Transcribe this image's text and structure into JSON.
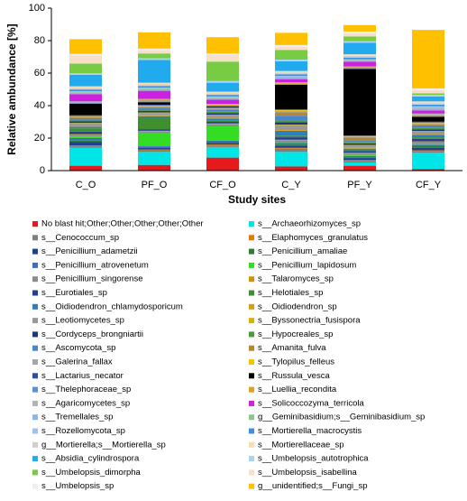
{
  "chart_data": {
    "type": "stacked_bar",
    "ylabel": "Relative ambundance [%]",
    "xlabel": "Study sites",
    "categories": [
      "C_O",
      "PF_O",
      "CF_O",
      "C_Y",
      "PF_Y",
      "CF_Y"
    ],
    "ylim": [
      0,
      100
    ],
    "yticks": [
      0,
      20,
      40,
      60,
      80,
      100
    ],
    "series": [
      {
        "name": "No blast hit;Other;Other;Other;Other;Other",
        "color": "#e41a1c",
        "values": [
          3,
          3.5,
          8,
          2.5,
          3,
          1
        ]
      },
      {
        "name": "s__Archaeorhizomyces_sp",
        "color": "#00e5e5",
        "values": [
          11,
          8,
          6.5,
          9,
          2,
          10
        ]
      },
      {
        "name": "s__Cenococcum_sp",
        "color": "#7f7f7f",
        "values": [
          1,
          1,
          1,
          2,
          1,
          1
        ]
      },
      {
        "name": "s__Elaphomyces_granulatus",
        "color": "#e07b00",
        "values": [
          0.5,
          0.5,
          0.5,
          0.5,
          0.5,
          0.5
        ]
      },
      {
        "name": "s__Penicillium_adametzii",
        "color": "#1f3f8f",
        "values": [
          2,
          1,
          1,
          1,
          1,
          1.5
        ]
      },
      {
        "name": "s__Penicillium_amaliae",
        "color": "#2e7d32",
        "values": [
          1,
          0.5,
          0.5,
          1,
          0.5,
          1
        ]
      },
      {
        "name": "s__Penicillium_atrovenetum",
        "color": "#3a6fc4",
        "values": [
          1.5,
          0.5,
          1,
          1,
          1,
          1
        ]
      },
      {
        "name": "s__Penicillium_lapidosum",
        "color": "#33dd22",
        "values": [
          1,
          8,
          9,
          0.5,
          0.5,
          0.5
        ]
      },
      {
        "name": "s__Penicillium_singorense",
        "color": "#8c8c8c",
        "values": [
          1,
          1,
          1,
          1,
          1,
          1
        ]
      },
      {
        "name": "s__Talaromyces_sp",
        "color": "#c89a00",
        "values": [
          0.5,
          0.5,
          0.5,
          0.5,
          0.5,
          0.5
        ]
      },
      {
        "name": "s__Eurotiales_sp",
        "color": "#24408e",
        "values": [
          1.5,
          1,
          1,
          1.5,
          1,
          1.5
        ]
      },
      {
        "name": "s__Helotiales_sp",
        "color": "#3f8f2f",
        "values": [
          2,
          7,
          1,
          1,
          0.5,
          1
        ]
      },
      {
        "name": "s__Oidiodendron_chlamydosporicum",
        "color": "#2f7fc0",
        "values": [
          1,
          1,
          1,
          3,
          1,
          1.5
        ]
      },
      {
        "name": "s__Oidiodendron_sp",
        "color": "#d4a017",
        "values": [
          0.5,
          0.5,
          0.5,
          0.5,
          0.5,
          0.5
        ]
      },
      {
        "name": "s__Leotiomycetes_sp",
        "color": "#999999",
        "values": [
          1.5,
          1.5,
          1.5,
          3,
          1.5,
          1.5
        ]
      },
      {
        "name": "s__Byssonectria_fusispora",
        "color": "#d9b300",
        "values": [
          0.3,
          0.3,
          0.3,
          0.3,
          0.3,
          0.3
        ]
      },
      {
        "name": "s__Cordyceps_brongniartii",
        "color": "#1c3a7a",
        "values": [
          1,
          1,
          1,
          1.5,
          1,
          1
        ]
      },
      {
        "name": "s__Hypocreales_sp",
        "color": "#4c9a3a",
        "values": [
          1,
          1,
          1,
          1,
          0.5,
          1
        ]
      },
      {
        "name": "s__Ascomycota_sp",
        "color": "#4a86d0",
        "values": [
          1,
          1,
          1,
          3,
          1,
          1.5
        ]
      },
      {
        "name": "s__Amanita_fulva",
        "color": "#b8862b",
        "values": [
          0.5,
          0.5,
          0.5,
          2,
          2,
          0.5
        ]
      },
      {
        "name": "s__Galerina_fallax",
        "color": "#a6a6a6",
        "values": [
          0.5,
          0.5,
          0.5,
          1,
          0.5,
          1
        ]
      },
      {
        "name": "s__Tylopilus_felleus",
        "color": "#f2c500",
        "values": [
          0.3,
          0.3,
          0.3,
          0.5,
          0.5,
          0.3
        ]
      },
      {
        "name": "s__Lactarius_necator",
        "color": "#2b4fa8",
        "values": [
          0.5,
          0.5,
          0.5,
          0.5,
          0.3,
          0.5
        ]
      },
      {
        "name": "s__Russula_vesca",
        "color": "#000000",
        "values": [
          7,
          1.5,
          0.5,
          15,
          41,
          3
        ]
      },
      {
        "name": "s__Thelephoraceae_sp",
        "color": "#5b8fd6",
        "values": [
          0.5,
          0.5,
          0.5,
          0.5,
          0.5,
          0.5
        ]
      },
      {
        "name": "s__Luellia_recondita",
        "color": "#e0a020",
        "values": [
          0.5,
          1,
          0.5,
          0.5,
          0.5,
          0.5
        ]
      },
      {
        "name": "s__Agaricomycetes_sp",
        "color": "#b3b3b3",
        "values": [
          0.5,
          0.5,
          0.5,
          0.5,
          0.5,
          1
        ]
      },
      {
        "name": "s__Solicoccozyma_terricola",
        "color": "#cc22dd",
        "values": [
          4.5,
          5,
          2.5,
          2,
          3,
          2
        ]
      },
      {
        "name": "s__Tremellales_sp",
        "color": "#8fb4e8",
        "values": [
          0.8,
          1,
          1,
          1,
          0.5,
          1
        ]
      },
      {
        "name": "g__Geminibasidium;s__Geminibasidium_sp",
        "color": "#8fc78a",
        "values": [
          0.5,
          0.5,
          0.5,
          0.5,
          0.5,
          0.5
        ]
      },
      {
        "name": "s__Rozellomycota_sp",
        "color": "#9dc3ef",
        "values": [
          0.5,
          0.5,
          0.5,
          0.5,
          0.5,
          1
        ]
      },
      {
        "name": "s__Mortierella_macrocystis",
        "color": "#3d8fe0",
        "values": [
          1,
          1,
          1,
          1,
          1,
          1
        ]
      },
      {
        "name": "g__Mortierella;s__Mortierella_sp",
        "color": "#cfcfcf",
        "values": [
          1,
          1,
          1,
          1,
          1,
          1
        ]
      },
      {
        "name": "s__Mortierellaceae_sp",
        "color": "#f5deb3",
        "values": [
          1,
          1,
          1,
          1,
          1,
          1
        ]
      },
      {
        "name": "s__Absidia_cylindrospora",
        "color": "#22aaee",
        "values": [
          7,
          14,
          5.5,
          6,
          7,
          3
        ]
      },
      {
        "name": "s__Umbelopsis_autotrophica",
        "color": "#a8d4f5",
        "values": [
          1,
          1,
          1,
          1,
          1,
          1
        ]
      },
      {
        "name": "s__Umbelopsis_dimorpha",
        "color": "#77cc44",
        "values": [
          6,
          3,
          12,
          6,
          3,
          1
        ]
      },
      {
        "name": "s__Umbelopsis_isabellina",
        "color": "#f8e0c8",
        "values": [
          5,
          2,
          4,
          2,
          2,
          2
        ]
      },
      {
        "name": "s__Umbelopsis_sp",
        "color": "#eeeeee",
        "values": [
          1,
          1,
          1,
          1,
          1,
          1
        ]
      },
      {
        "name": "g__unidentified;s__Fungi_sp",
        "color": "#ffc000",
        "values": [
          9,
          10,
          10,
          7.5,
          4,
          36
        ]
      }
    ]
  }
}
